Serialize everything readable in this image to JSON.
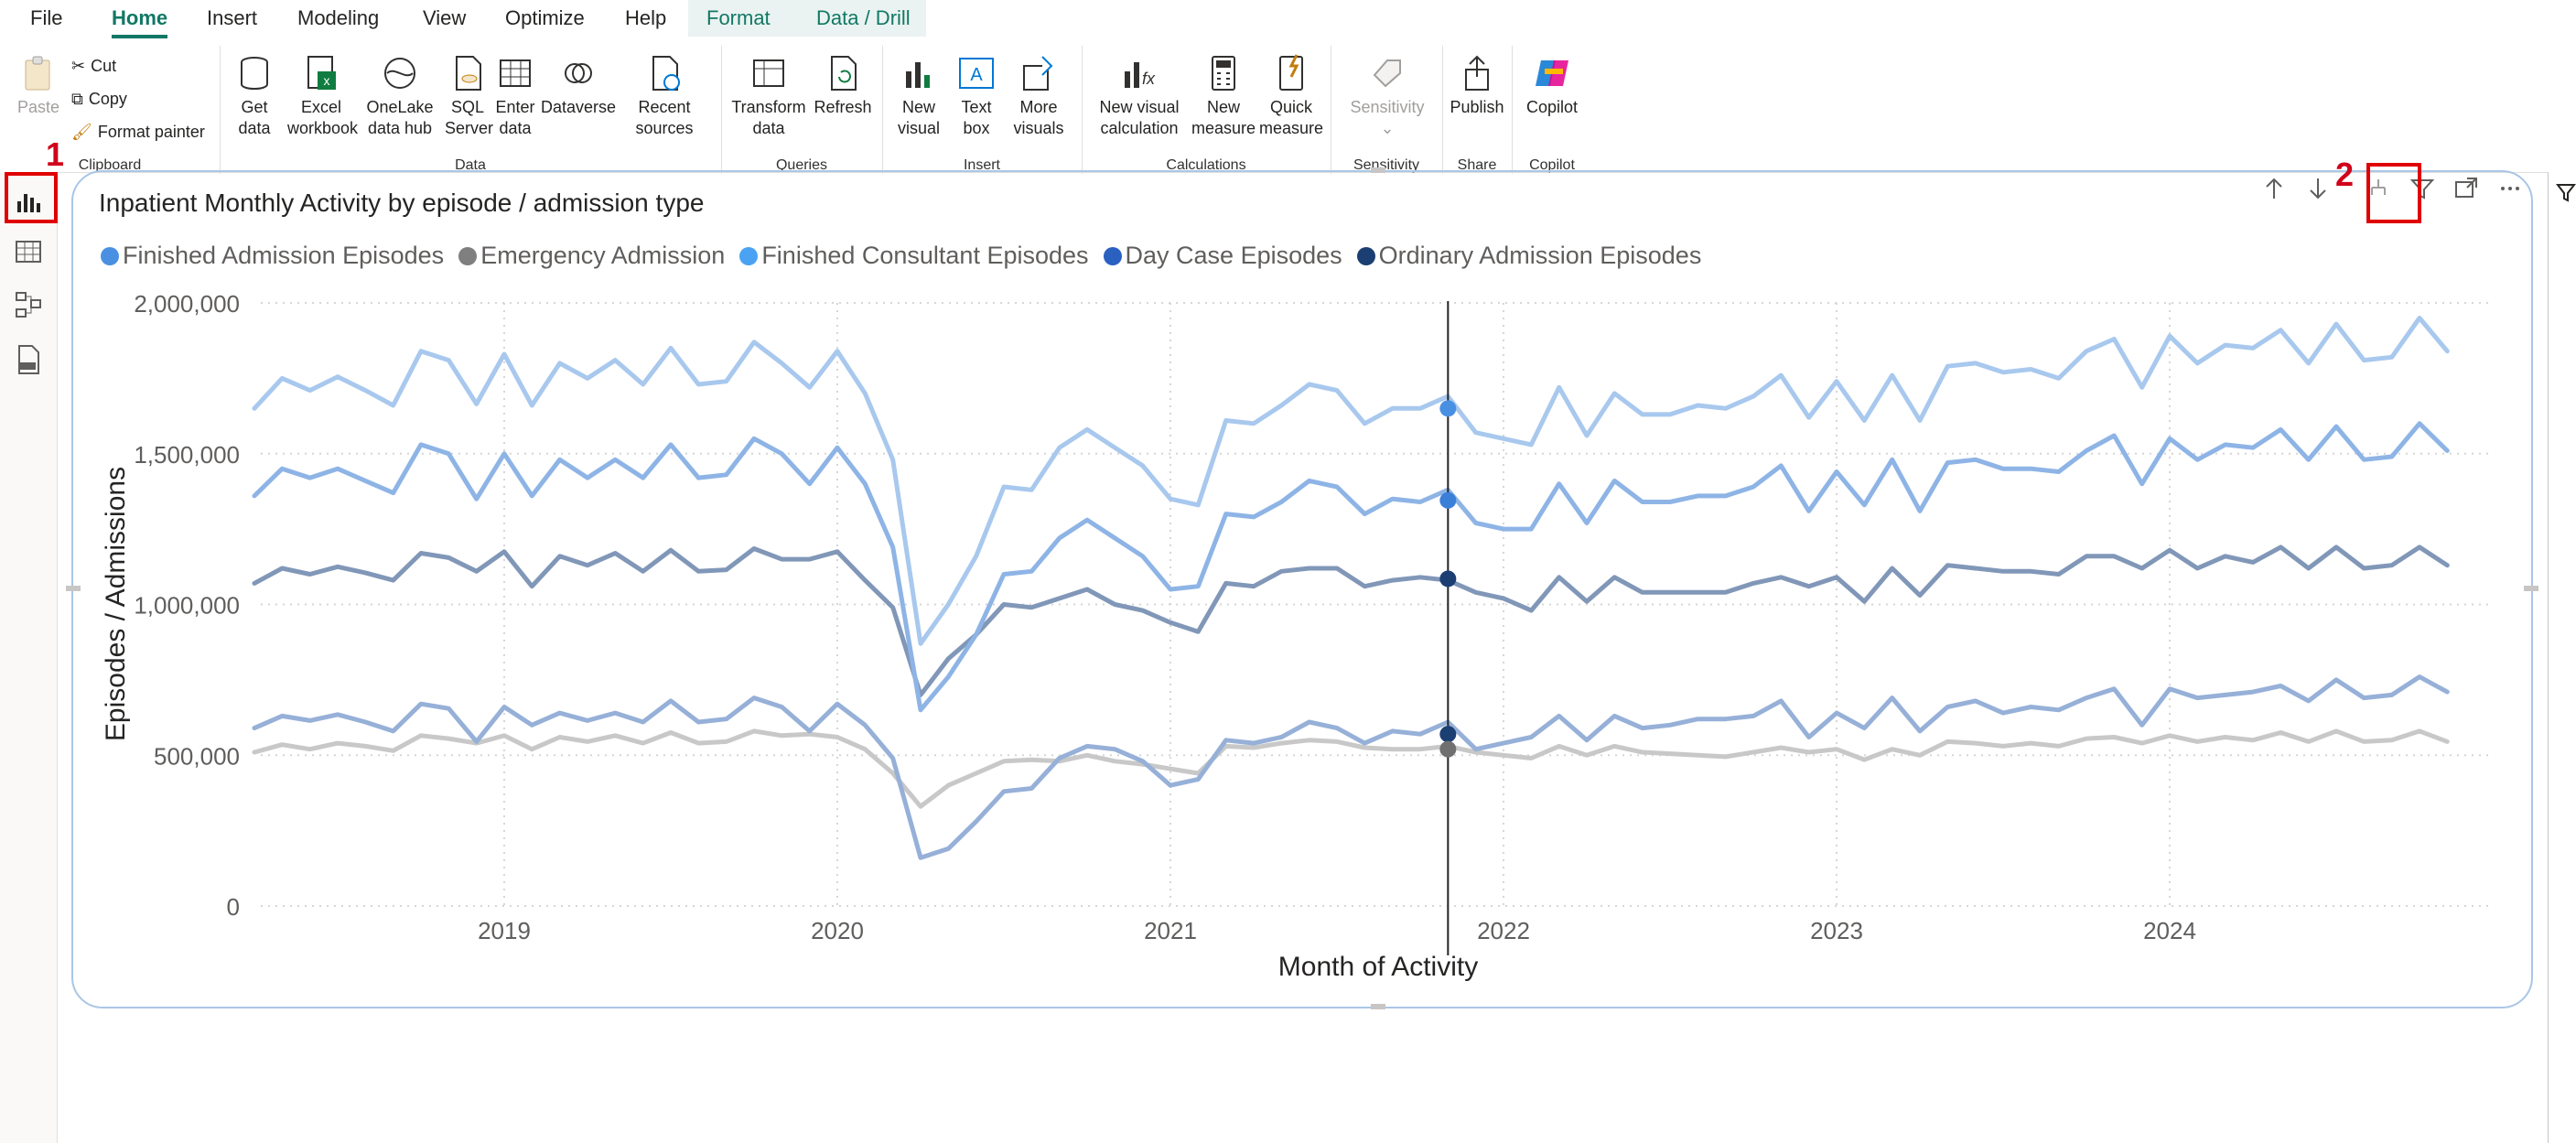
{
  "menu": [
    "File",
    "Home",
    "Insert",
    "Modeling",
    "View",
    "Optimize",
    "Help",
    "Format",
    "Data / Drill"
  ],
  "ribbon": {
    "clipboard": {
      "paste": "Paste",
      "cut": "Cut",
      "copy": "Copy",
      "format_painter": "Format painter",
      "label": "Clipboard"
    },
    "data": {
      "get_data": [
        "Get",
        "data"
      ],
      "excel": [
        "Excel",
        "workbook"
      ],
      "onelake": [
        "OneLake",
        "data hub"
      ],
      "sql": [
        "SQL",
        "Server"
      ],
      "enter": [
        "Enter",
        "data"
      ],
      "dataverse": [
        "Dataverse",
        ""
      ],
      "recent": [
        "Recent",
        "sources"
      ],
      "label": "Data"
    },
    "queries": {
      "transform": [
        "Transform",
        "data"
      ],
      "refresh": [
        "Refresh",
        ""
      ],
      "label": "Queries"
    },
    "insert": {
      "new_visual": [
        "New",
        "visual"
      ],
      "text_box": [
        "Text",
        "box"
      ],
      "more_visuals": [
        "More",
        "visuals"
      ],
      "label": "Insert"
    },
    "calculations": {
      "new_visual_calc": [
        "New visual",
        "calculation"
      ],
      "new_measure": [
        "New",
        "measure"
      ],
      "quick_measure": [
        "Quick",
        "measure"
      ],
      "label": "Calculations"
    },
    "sensitivity": {
      "btn": [
        "Sensitivity",
        ""
      ],
      "label": "Sensitivity"
    },
    "share": {
      "publish": [
        "Publish",
        ""
      ],
      "label": "Share"
    },
    "copilot": {
      "btn": [
        "Copilot",
        ""
      ],
      "label": "Copilot"
    }
  },
  "callouts": {
    "one": "1",
    "two": "2"
  },
  "chart_data": {
    "type": "line",
    "title": "Inpatient Monthly Activity by episode / admission type",
    "xlabel": "Month of Activity",
    "ylabel": "Episodes / Admissions",
    "ylim": [
      0,
      2000000
    ],
    "yticks": [
      "0",
      "500,000",
      "1,000,000",
      "1,500,000",
      "2,000,000"
    ],
    "xticks": [
      "2019",
      "2020",
      "2021",
      "2022",
      "2023",
      "2024"
    ],
    "legend_position": "top-left",
    "x_start": "2018-04",
    "x_end": "2024-10",
    "highlight_month": "2021-11",
    "series": [
      {
        "name": "Finished Admission Episodes",
        "color": "#a8c8ee",
        "values": [
          1650000,
          1750000,
          1710000,
          1755000,
          1710000,
          1660000,
          1840000,
          1810000,
          1665000,
          1830000,
          1660000,
          1800000,
          1750000,
          1810000,
          1730000,
          1850000,
          1730000,
          1740000,
          1870000,
          1800000,
          1720000,
          1840000,
          1700000,
          1480000,
          870000,
          1000000,
          1160000,
          1390000,
          1380000,
          1520000,
          1580000,
          1520000,
          1460000,
          1350000,
          1330000,
          1610000,
          1600000,
          1660000,
          1730000,
          1710000,
          1600000,
          1650000,
          1650000,
          1690000,
          1570000,
          1550000,
          1530000,
          1720000,
          1560000,
          1700000,
          1630000,
          1630000,
          1660000,
          1650000,
          1690000,
          1760000,
          1620000,
          1740000,
          1610000,
          1760000,
          1610000,
          1790000,
          1800000,
          1770000,
          1780000,
          1750000,
          1840000,
          1880000,
          1720000,
          1890000,
          1800000,
          1860000,
          1850000,
          1910000,
          1800000,
          1930000,
          1810000,
          1820000,
          1950000,
          1840000
        ]
      },
      {
        "name": "Emergency Admission",
        "color": "#c8c8c8",
        "values": [
          510000,
          535000,
          520000,
          540000,
          530000,
          515000,
          565000,
          555000,
          540000,
          565000,
          520000,
          560000,
          545000,
          565000,
          540000,
          575000,
          540000,
          545000,
          580000,
          565000,
          570000,
          560000,
          520000,
          440000,
          330000,
          400000,
          440000,
          480000,
          485000,
          480000,
          500000,
          480000,
          470000,
          455000,
          440000,
          530000,
          525000,
          540000,
          550000,
          545000,
          525000,
          520000,
          520000,
          530000,
          510000,
          500000,
          490000,
          530000,
          500000,
          530000,
          510000,
          505000,
          500000,
          495000,
          510000,
          525000,
          510000,
          520000,
          485000,
          520000,
          500000,
          545000,
          540000,
          530000,
          540000,
          530000,
          555000,
          560000,
          540000,
          565000,
          545000,
          560000,
          550000,
          575000,
          545000,
          580000,
          545000,
          550000,
          580000,
          545000
        ]
      },
      {
        "name": "Finished Consultant Episodes",
        "color": "#8eb4e6",
        "values": [
          1360000,
          1450000,
          1420000,
          1450000,
          1410000,
          1370000,
          1530000,
          1500000,
          1350000,
          1500000,
          1360000,
          1480000,
          1420000,
          1480000,
          1420000,
          1530000,
          1420000,
          1430000,
          1550000,
          1500000,
          1400000,
          1520000,
          1400000,
          1190000,
          650000,
          760000,
          900000,
          1100000,
          1110000,
          1220000,
          1280000,
          1220000,
          1160000,
          1050000,
          1060000,
          1300000,
          1290000,
          1340000,
          1410000,
          1390000,
          1300000,
          1350000,
          1340000,
          1380000,
          1270000,
          1250000,
          1250000,
          1400000,
          1270000,
          1410000,
          1340000,
          1340000,
          1360000,
          1360000,
          1390000,
          1460000,
          1310000,
          1440000,
          1330000,
          1480000,
          1310000,
          1470000,
          1480000,
          1450000,
          1450000,
          1440000,
          1510000,
          1560000,
          1400000,
          1550000,
          1480000,
          1530000,
          1520000,
          1580000,
          1480000,
          1590000,
          1480000,
          1490000,
          1600000,
          1510000
        ]
      },
      {
        "name": "Day Case Episodes",
        "color": "#96b0d8",
        "values": [
          590000,
          630000,
          615000,
          635000,
          610000,
          580000,
          670000,
          655000,
          545000,
          660000,
          600000,
          640000,
          615000,
          640000,
          610000,
          680000,
          610000,
          620000,
          690000,
          660000,
          580000,
          670000,
          600000,
          490000,
          160000,
          190000,
          280000,
          380000,
          390000,
          490000,
          530000,
          520000,
          480000,
          400000,
          420000,
          550000,
          540000,
          560000,
          610000,
          590000,
          540000,
          580000,
          570000,
          610000,
          520000,
          540000,
          560000,
          630000,
          550000,
          630000,
          590000,
          600000,
          620000,
          620000,
          630000,
          680000,
          560000,
          640000,
          590000,
          690000,
          580000,
          660000,
          680000,
          640000,
          660000,
          650000,
          690000,
          720000,
          600000,
          720000,
          690000,
          700000,
          710000,
          730000,
          680000,
          750000,
          690000,
          700000,
          760000,
          710000
        ]
      },
      {
        "name": "Ordinary Admission Episodes",
        "color": "#8197b8",
        "values": [
          1070000,
          1120000,
          1100000,
          1125000,
          1105000,
          1080000,
          1170000,
          1155000,
          1110000,
          1175000,
          1060000,
          1160000,
          1130000,
          1170000,
          1110000,
          1180000,
          1110000,
          1115000,
          1185000,
          1150000,
          1150000,
          1175000,
          1080000,
          990000,
          700000,
          820000,
          900000,
          1000000,
          990000,
          1020000,
          1050000,
          1000000,
          980000,
          940000,
          910000,
          1070000,
          1060000,
          1110000,
          1120000,
          1120000,
          1060000,
          1080000,
          1090000,
          1080000,
          1040000,
          1020000,
          980000,
          1090000,
          1010000,
          1090000,
          1040000,
          1040000,
          1040000,
          1040000,
          1070000,
          1090000,
          1060000,
          1090000,
          1010000,
          1120000,
          1030000,
          1130000,
          1120000,
          1110000,
          1110000,
          1100000,
          1160000,
          1160000,
          1120000,
          1180000,
          1120000,
          1160000,
          1140000,
          1190000,
          1120000,
          1190000,
          1120000,
          1130000,
          1190000,
          1130000
        ]
      }
    ],
    "markers": [
      {
        "series": "Finished Admission Episodes",
        "value": 1650000,
        "color": "#4a90e2"
      },
      {
        "series": "Finished Consultant Episodes",
        "value": 1345000,
        "color": "#3a7fd8"
      },
      {
        "series": "Ordinary Admission Episodes",
        "value": 1085000,
        "color": "#1b3f73"
      },
      {
        "series": "Day Case Episodes",
        "value": 570000,
        "color": "#1b3f73"
      },
      {
        "series": "Emergency Admission",
        "value": 520000,
        "color": "#707070"
      }
    ],
    "legend_colors": [
      "#4a90e2",
      "#7f7f7f",
      "#4aa3f2",
      "#2a60c0",
      "#1b3f73"
    ]
  }
}
